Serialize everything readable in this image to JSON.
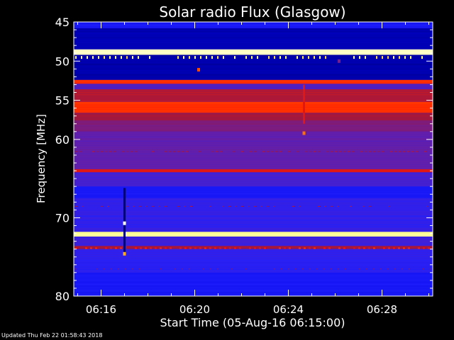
{
  "chart_data": {
    "type": "heatmap",
    "title": "Solar radio Flux (Glasgow)",
    "xlabel": "Start Time (05-Aug-16 06:15:00)",
    "ylabel": "Frequency [MHz]",
    "x_unit": "time (UT)",
    "xlim": [
      "06:14:50",
      "06:30:10"
    ],
    "ylim": [
      45,
      80
    ],
    "y_inverted": true,
    "x_ticks": [
      "06:16",
      "06:20",
      "06:24",
      "06:28"
    ],
    "y_ticks": [
      45,
      50,
      55,
      60,
      70,
      80
    ],
    "colormap": [
      "#00006e",
      "#0000dc",
      "#2020ff",
      "#6a1fa0",
      "#a01840",
      "#ff1800",
      "#ff7000",
      "#ffff60",
      "#ffffff"
    ],
    "background_level": 0.3,
    "bands": [
      {
        "f_start": 45.0,
        "f_end": 45.8,
        "level": 0.22
      },
      {
        "f_start": 45.8,
        "f_end": 48.5,
        "level": 0.08
      },
      {
        "f_start": 48.5,
        "f_end": 49.2,
        "level": 0.95
      },
      {
        "f_start": 49.2,
        "f_end": 52.4,
        "level": 0.07
      },
      {
        "f_start": 52.4,
        "f_end": 52.9,
        "level": 0.65
      },
      {
        "f_start": 52.9,
        "f_end": 53.6,
        "level": 0.33
      },
      {
        "f_start": 53.6,
        "f_end": 55.2,
        "level": 0.52
      },
      {
        "f_start": 55.2,
        "f_end": 56.6,
        "level": 0.66
      },
      {
        "f_start": 56.6,
        "f_end": 57.6,
        "level": 0.5
      },
      {
        "f_start": 57.6,
        "f_end": 59.0,
        "level": 0.42
      },
      {
        "f_start": 59.0,
        "f_end": 63.8,
        "level": 0.36
      },
      {
        "f_start": 63.8,
        "f_end": 64.2,
        "level": 0.58
      },
      {
        "f_start": 64.2,
        "f_end": 66.0,
        "level": 0.31
      },
      {
        "f_start": 66.0,
        "f_end": 67.5,
        "level": 0.22
      },
      {
        "f_start": 67.5,
        "f_end": 71.8,
        "level": 0.28
      },
      {
        "f_start": 71.8,
        "f_end": 72.4,
        "level": 0.92
      },
      {
        "f_start": 72.4,
        "f_end": 73.6,
        "level": 0.3
      },
      {
        "f_start": 73.6,
        "f_end": 74.0,
        "level": 0.5
      },
      {
        "f_start": 74.0,
        "f_end": 77.0,
        "level": 0.27
      },
      {
        "f_start": 77.0,
        "f_end": 80.0,
        "level": 0.22
      }
    ],
    "features": [
      {
        "kind": "vertical-spike",
        "time": "06:17:00",
        "f_start": 66.2,
        "f_end": 74.6,
        "level": 0.02
      },
      {
        "kind": "bright-point",
        "time": "06:17:00",
        "freq": 70.7,
        "level": 1.0
      },
      {
        "kind": "bright-point",
        "time": "06:17:00",
        "freq": 74.6,
        "level": 0.8
      },
      {
        "kind": "vertical-spike",
        "time": "06:24:40",
        "f_start": 53.0,
        "f_end": 58.0,
        "level": 0.58
      },
      {
        "kind": "bright-point",
        "time": "06:24:40",
        "freq": 59.2,
        "level": 0.75
      },
      {
        "kind": "bright-point",
        "time": "06:20:10",
        "freq": 51.1,
        "level": 0.7
      },
      {
        "kind": "bright-point",
        "time": "06:26:10",
        "freq": 50.0,
        "level": 0.4
      }
    ]
  },
  "footer": {
    "updated_text": "Updated Thu Feb 22 01:58:43 2018"
  }
}
